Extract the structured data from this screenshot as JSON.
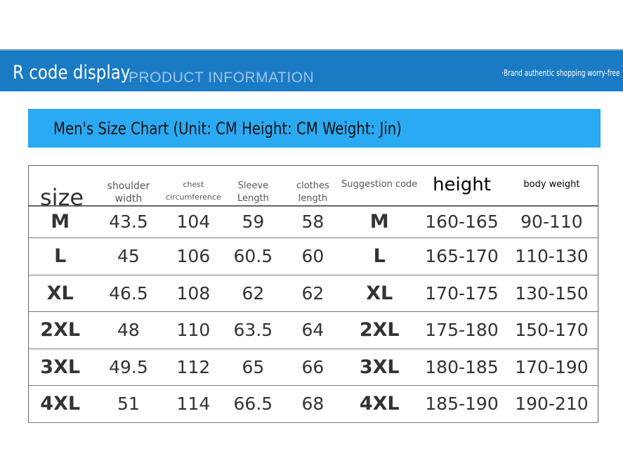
{
  "banner": {
    "title": "R code display",
    "subtitle": "PRODUCT INFORMATION",
    "tagline": "·Brand authentic shopping worry-free"
  },
  "chart_title": "Men's Size Chart (Unit: CM Height: CM Weight: Jin)",
  "colors": {
    "banner": "#1a7bc4",
    "title_bar": "#2aaaf2"
  },
  "table": {
    "headers": [
      "size",
      "shoulder width",
      "chest circumference",
      "Sleeve Length",
      "clothes length",
      "Suggestion code",
      "height",
      "body weight"
    ],
    "rows": [
      [
        "M",
        "43.5",
        "104",
        "59",
        "58",
        "M",
        "160-165",
        "90-110"
      ],
      [
        "L",
        "45",
        "106",
        "60.5",
        "60",
        "L",
        "165-170",
        "110-130"
      ],
      [
        "XL",
        "46.5",
        "108",
        "62",
        "62",
        "XL",
        "170-175",
        "130-150"
      ],
      [
        "2XL",
        "48",
        "110",
        "63.5",
        "64",
        "2XL",
        "175-180",
        "150-170"
      ],
      [
        "3XL",
        "49.5",
        "112",
        "65",
        "66",
        "3XL",
        "180-185",
        "170-190"
      ],
      [
        "4XL",
        "51",
        "114",
        "66.5",
        "68",
        "4XL",
        "185-190",
        "190-210"
      ]
    ]
  }
}
